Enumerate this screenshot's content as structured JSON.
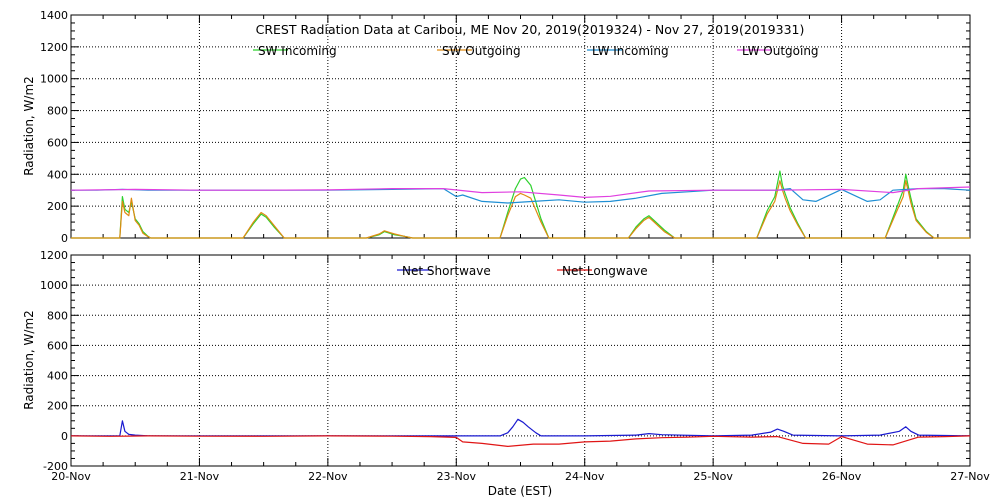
{
  "colors": {
    "sw_incoming": "#2ed12e",
    "sw_outgoing": "#e08a12",
    "lw_incoming": "#1f8fd4",
    "lw_outgoing": "#e040e0",
    "net_shortwave": "#1a1ad0",
    "net_longwave": "#e01515"
  },
  "chart_data": [
    {
      "type": "line",
      "title": "CREST Radiation Data at Caribou, ME   Nov 20, 2019(2019324) - Nov 27, 2019(2019331)",
      "xlabel": "",
      "ylabel": "Radiation, W/m2",
      "xlim": [
        0,
        7
      ],
      "ylim": [
        0,
        1400
      ],
      "yticks": [
        "0",
        "200",
        "400",
        "600",
        "800",
        "1000",
        "1200",
        "1400"
      ],
      "yticks_values": [
        0,
        200,
        400,
        600,
        800,
        1000,
        1200,
        1400
      ],
      "x_unit": "days since 20-Nov",
      "grid": true,
      "legend_placement": "top",
      "series": [
        {
          "name": "SW Incoming",
          "color_key": "sw_incoming",
          "x": [
            0,
            0.38,
            0.4,
            0.42,
            0.45,
            0.47,
            0.5,
            0.53,
            0.56,
            0.6,
            0.62,
            1,
            1.34,
            1.42,
            1.48,
            1.52,
            1.58,
            1.66,
            2,
            2.3,
            2.4,
            2.44,
            2.48,
            2.52,
            2.6,
            2.66,
            3,
            3.34,
            3.4,
            3.46,
            3.5,
            3.53,
            3.58,
            3.66,
            3.72,
            4,
            4.34,
            4.4,
            4.46,
            4.5,
            4.54,
            4.62,
            4.7,
            5,
            5.34,
            5.42,
            5.48,
            5.52,
            5.54,
            5.56,
            5.6,
            5.66,
            5.72,
            6,
            6.34,
            6.42,
            6.48,
            6.5,
            6.52,
            6.54,
            6.58,
            6.66,
            6.72,
            7
          ],
          "y": [
            0,
            0,
            260,
            180,
            160,
            230,
            120,
            90,
            40,
            10,
            0,
            0,
            0,
            90,
            150,
            130,
            70,
            0,
            0,
            0,
            20,
            40,
            30,
            20,
            10,
            0,
            0,
            0,
            160,
            310,
            370,
            380,
            330,
            120,
            0,
            0,
            0,
            70,
            120,
            140,
            110,
            50,
            0,
            0,
            0,
            170,
            260,
            420,
            330,
            280,
            190,
            90,
            0,
            0,
            0,
            170,
            300,
            400,
            320,
            250,
            120,
            40,
            0,
            0
          ]
        },
        {
          "name": "SW Outgoing",
          "color_key": "sw_outgoing",
          "x": [
            0,
            0.38,
            0.4,
            0.42,
            0.45,
            0.47,
            0.5,
            0.53,
            0.56,
            0.6,
            0.62,
            1,
            1.34,
            1.42,
            1.48,
            1.52,
            1.58,
            1.66,
            2,
            2.3,
            2.4,
            2.44,
            2.48,
            2.52,
            2.6,
            2.66,
            3,
            3.34,
            3.4,
            3.46,
            3.5,
            3.53,
            3.58,
            3.66,
            3.72,
            4,
            4.34,
            4.4,
            4.46,
            4.5,
            4.54,
            4.62,
            4.7,
            5,
            5.34,
            5.42,
            5.48,
            5.52,
            5.54,
            5.56,
            5.6,
            5.66,
            5.72,
            6,
            6.34,
            6.42,
            6.48,
            6.5,
            6.52,
            6.54,
            6.58,
            6.66,
            6.72,
            7
          ],
          "y": [
            0,
            0,
            230,
            160,
            140,
            250,
            110,
            80,
            30,
            8,
            0,
            0,
            0,
            100,
            160,
            140,
            80,
            0,
            0,
            0,
            25,
            45,
            35,
            25,
            10,
            0,
            0,
            0,
            140,
            260,
            280,
            270,
            250,
            100,
            0,
            0,
            0,
            60,
            110,
            130,
            100,
            40,
            0,
            0,
            0,
            150,
            230,
            360,
            300,
            250,
            170,
            80,
            0,
            0,
            0,
            150,
            260,
            360,
            290,
            220,
            110,
            35,
            0,
            0
          ]
        },
        {
          "name": "LW Incoming",
          "color_key": "lw_incoming",
          "x": [
            0,
            0.2,
            0.4,
            0.6,
            0.8,
            1,
            1.5,
            2,
            2.5,
            2.9,
            3,
            3.05,
            3.2,
            3.4,
            3.6,
            3.8,
            4,
            4.2,
            4.4,
            4.6,
            4.8,
            5,
            5.3,
            5.5,
            5.6,
            5.7,
            5.8,
            6,
            6.2,
            6.3,
            6.4,
            6.6,
            6.8,
            7
          ],
          "y": [
            300,
            300,
            305,
            300,
            300,
            300,
            300,
            300,
            305,
            310,
            260,
            270,
            230,
            220,
            230,
            240,
            225,
            230,
            250,
            280,
            290,
            300,
            300,
            300,
            310,
            240,
            230,
            305,
            230,
            240,
            300,
            310,
            310,
            300
          ]
        },
        {
          "name": "LW Outgoing",
          "color_key": "lw_outgoing",
          "x": [
            0,
            0.5,
            1,
            1.5,
            2,
            2.5,
            2.9,
            3.2,
            3.5,
            3.8,
            4,
            4.2,
            4.5,
            5,
            5.5,
            6,
            6.4,
            6.6,
            7
          ],
          "y": [
            300,
            305,
            300,
            300,
            302,
            310,
            310,
            285,
            290,
            270,
            255,
            262,
            295,
            300,
            300,
            305,
            285,
            310,
            320
          ]
        }
      ]
    },
    {
      "type": "line",
      "title": "",
      "xlabel": "Date (EST)",
      "ylabel": "Radiation, W/m2",
      "xlim": [
        0,
        7
      ],
      "ylim": [
        -200,
        1200
      ],
      "yticks": [
        "-200",
        "0",
        "200",
        "400",
        "600",
        "800",
        "1000",
        "1200"
      ],
      "yticks_values": [
        -200,
        0,
        200,
        400,
        600,
        800,
        1000,
        1200
      ],
      "xticks": [
        "20-Nov",
        "21-Nov",
        "22-Nov",
        "23-Nov",
        "24-Nov",
        "25-Nov",
        "26-Nov",
        "27-Nov"
      ],
      "xticks_values": [
        0,
        1,
        2,
        3,
        4,
        5,
        6,
        7
      ],
      "grid": true,
      "legend_placement": "top",
      "series": [
        {
          "name": "Net Shortwave",
          "color_key": "net_shortwave",
          "x": [
            0,
            0.38,
            0.4,
            0.42,
            0.45,
            0.5,
            0.6,
            1,
            2,
            3,
            3.34,
            3.4,
            3.44,
            3.48,
            3.52,
            3.56,
            3.62,
            3.66,
            4,
            4.4,
            4.5,
            4.6,
            5,
            5.3,
            5.45,
            5.5,
            5.55,
            5.62,
            6,
            6.3,
            6.45,
            6.5,
            6.54,
            6.6,
            7
          ],
          "y": [
            0,
            0,
            100,
            30,
            10,
            5,
            0,
            0,
            0,
            0,
            0,
            20,
            60,
            110,
            90,
            60,
            20,
            0,
            0,
            5,
            15,
            8,
            0,
            5,
            25,
            45,
            30,
            5,
            0,
            5,
            30,
            60,
            30,
            5,
            0
          ]
        },
        {
          "name": "Net Longwave",
          "color_key": "net_longwave",
          "x": [
            0,
            0.3,
            0.6,
            1,
            1.5,
            2,
            2.5,
            2.8,
            3,
            3.05,
            3.2,
            3.4,
            3.6,
            3.8,
            4,
            4.2,
            4.4,
            4.6,
            4.8,
            5,
            5.3,
            5.5,
            5.7,
            5.9,
            6,
            6.2,
            6.4,
            6.6,
            6.8,
            7
          ],
          "y": [
            0,
            -3,
            0,
            -2,
            -3,
            0,
            -2,
            -5,
            -10,
            -40,
            -50,
            -70,
            -55,
            -55,
            -40,
            -35,
            -20,
            -12,
            -8,
            -3,
            -8,
            -5,
            -50,
            -55,
            -5,
            -55,
            -60,
            -8,
            -5,
            0
          ]
        }
      ]
    }
  ]
}
